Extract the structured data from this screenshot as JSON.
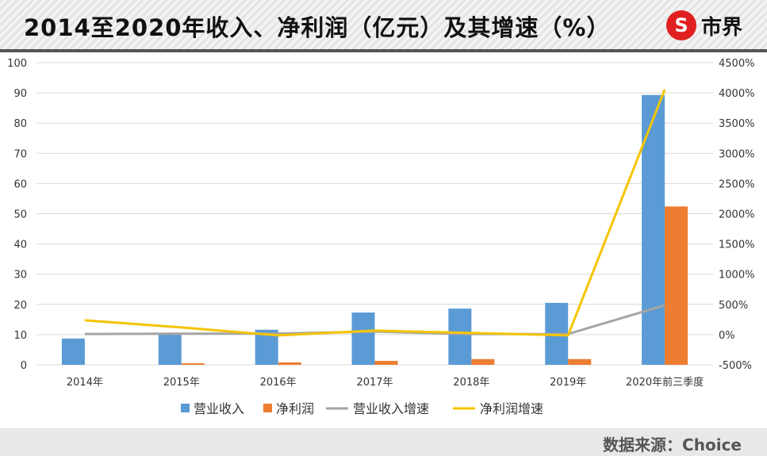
{
  "header": {
    "title": "2014至2020年收入、净利润（亿元）及其增速（%）",
    "logo_text": "市界"
  },
  "footer": {
    "source": "数据来源：Choice"
  },
  "chart_data": {
    "type": "bar",
    "title": "2014至2020年收入、净利润（亿元）及其增速（%）",
    "categories": [
      "2014年",
      "2015年",
      "2016年",
      "2017年",
      "2018年",
      "2019年",
      "2020年前三季度"
    ],
    "left_axis": {
      "range": [
        0,
        100
      ],
      "ticks": [
        "0",
        "10",
        "20",
        "30",
        "40",
        "50",
        "60",
        "70",
        "80",
        "90",
        "100"
      ]
    },
    "right_axis": {
      "range": [
        -500,
        4500
      ],
      "ticks": [
        "-500%",
        "0%",
        "500%",
        "1000%",
        "1500%",
        "2000%",
        "2500%",
        "3000%",
        "3500%",
        "4000%",
        "4500%"
      ]
    },
    "series": [
      {
        "name": "营业收入",
        "kind": "bar",
        "axis": "left",
        "color": "#5b9bd5",
        "values": [
          8.7,
          10.0,
          11.6,
          17.3,
          18.6,
          20.5,
          89.3
        ]
      },
      {
        "name": "净利润",
        "kind": "bar",
        "axis": "left",
        "color": "#ed7d31",
        "values": [
          0,
          0.5,
          0.8,
          1.3,
          1.9,
          1.9,
          52.4
        ]
      },
      {
        "name": "营业收入增速",
        "kind": "line",
        "axis": "right",
        "color": "#a5a5a5",
        "values": [
          10,
          15,
          16,
          49,
          8,
          10,
          485
        ]
      },
      {
        "name": "净利润增速",
        "kind": "line",
        "axis": "right",
        "color": "#f5c400",
        "values": [
          236,
          118,
          -13,
          66,
          26,
          -13,
          4055
        ]
      }
    ],
    "legend": "bottom",
    "grid": true
  }
}
